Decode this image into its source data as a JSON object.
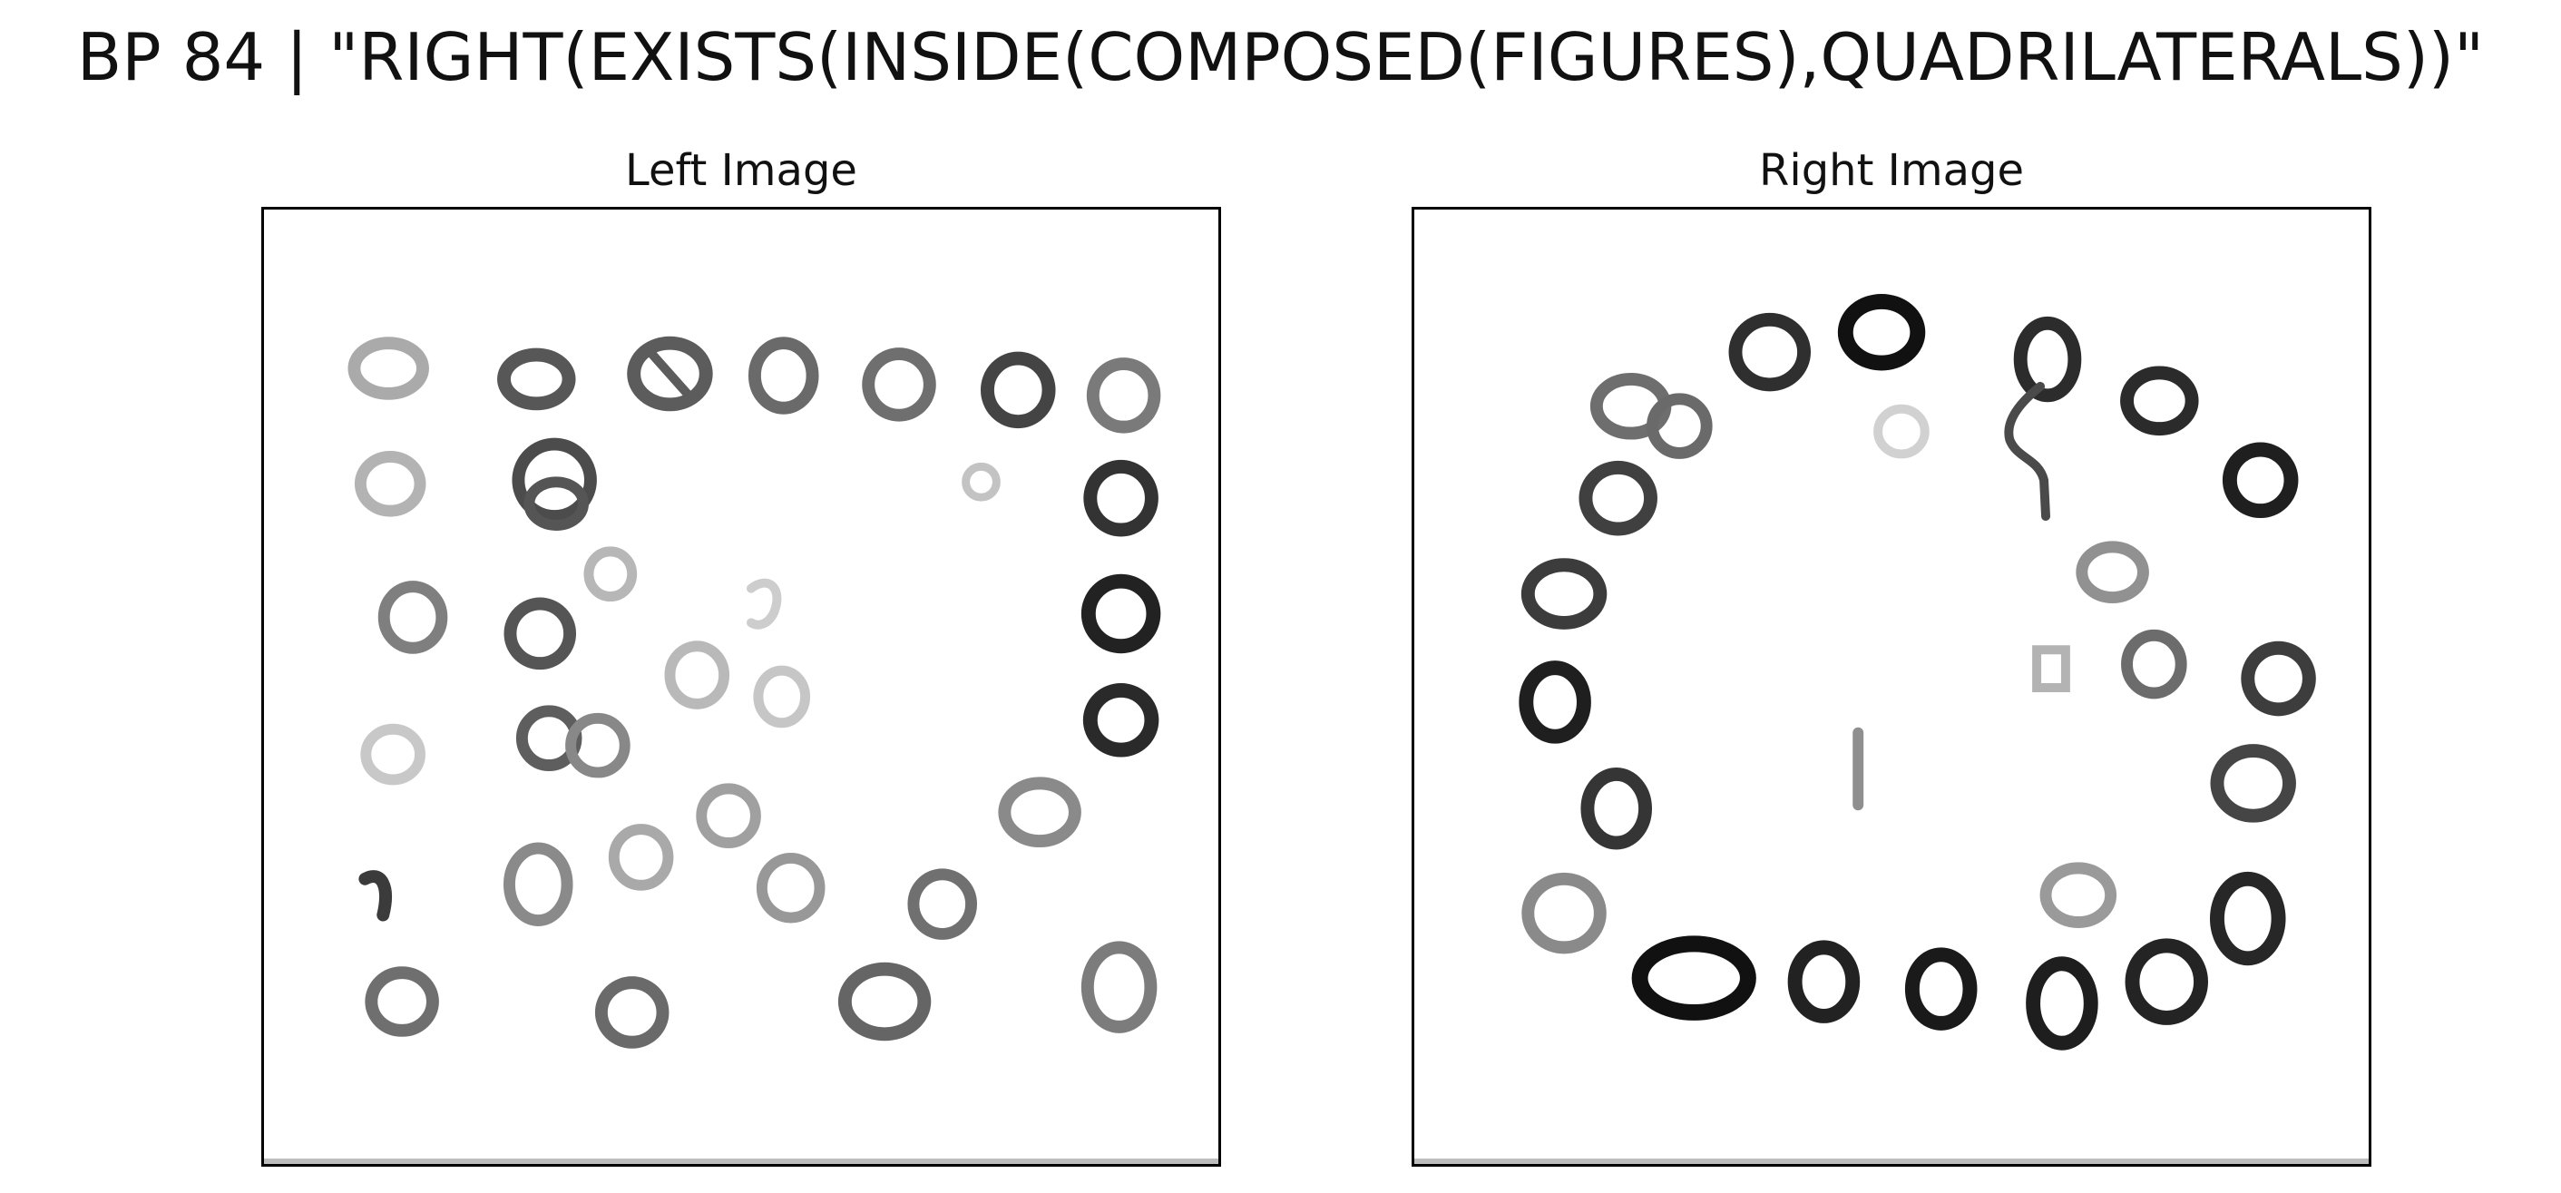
{
  "figure": {
    "title": "BP 84 | \"RIGHT(EXISTS(INSIDE(COMPOSED(FIGURES),QUADRILATERALS))\""
  },
  "left_panel": {
    "title": "Left Image"
  },
  "right_panel": {
    "title": "Right Image"
  }
}
